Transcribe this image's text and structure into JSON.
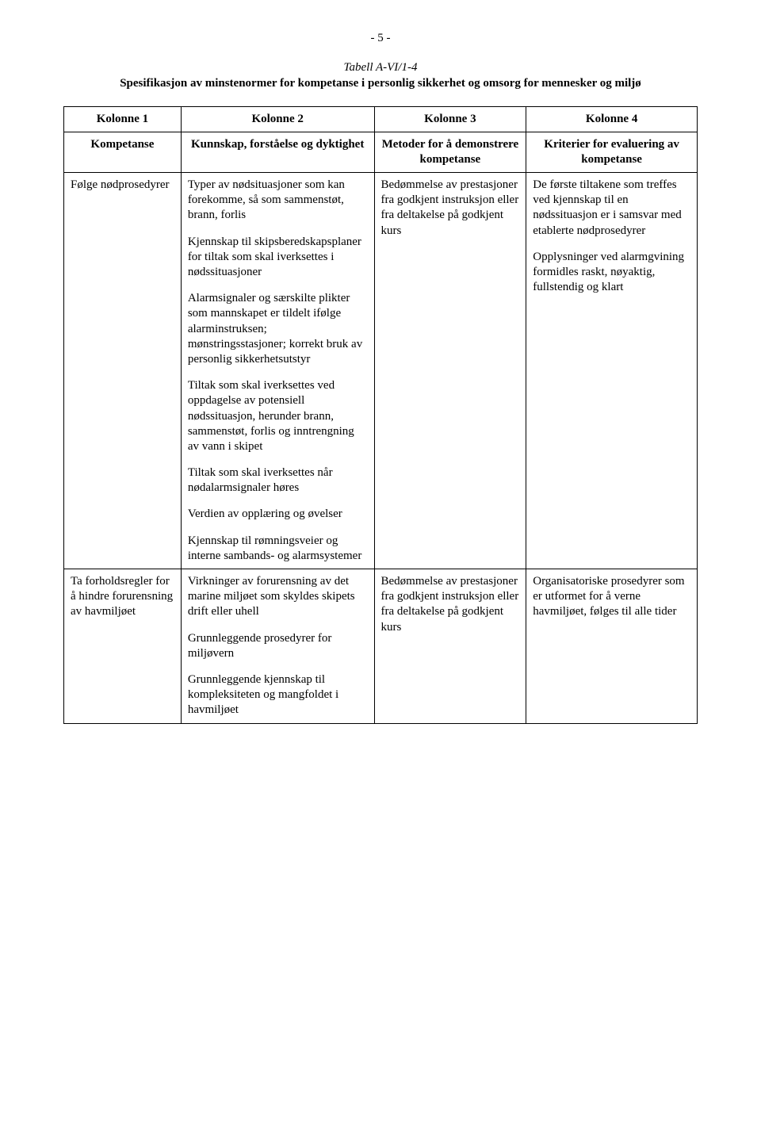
{
  "page_number": "- 5 -",
  "table_label": "Tabell A-VI/1-4",
  "spec_title": "Spesifikasjon av minstenormer for kompetanse i personlig sikkerhet og omsorg for mennesker og miljø",
  "col_headers_row1": [
    "Kolonne 1",
    "Kolonne 2",
    "Kolonne 3",
    "Kolonne 4"
  ],
  "col_headers_row2": [
    "Kompetanse",
    "Kunnskap, forståelse og dyktighet",
    "Metoder for å demonstrere kompetanse",
    "Kriterier for evaluering av kompetanse"
  ],
  "rows": [
    {
      "c1": [
        "Følge nødprosedyrer"
      ],
      "c2": [
        "Typer av nødsituasjoner som kan forekomme, så som sammenstøt, brann, forlis",
        "Kjennskap til skipsberedskapsplaner for tiltak som skal iverksettes i nødssituasjoner",
        "Alarmsignaler og særskilte plikter som mannskapet er tildelt ifølge alarminstruksen; mønstringsstasjoner; korrekt bruk av personlig sikkerhetsutstyr",
        "Tiltak som skal iverksettes ved oppdagelse av potensiell nødssituasjon, herunder brann, sammenstøt, forlis og inntrengning av vann i skipet",
        "Tiltak som skal iverksettes når nødalarmsignaler høres",
        "Verdien av opplæring og øvelser",
        "Kjennskap til rømningsveier og interne sambands- og alarmsystemer"
      ],
      "c3": [
        "Bedømmelse av prestasjoner fra godkjent instruksjon eller fra deltakelse på godkjent kurs"
      ],
      "c4": [
        "De første tiltakene som treffes ved kjennskap til en nødssituasjon er i samsvar med etablerte nødprosedyrer",
        "Opplysninger ved alarmgvining formidles raskt, nøyaktig, fullstendig og klart"
      ]
    },
    {
      "c1": [
        "Ta forholdsregler for å hindre forurensning av havmiljøet"
      ],
      "c2": [
        "Virkninger av forurensning av det marine miljøet som skyldes skipets drift eller uhell",
        "Grunnleggende prosedyrer for miljøvern",
        "Grunnleggende kjennskap til kompleksiteten og mangfoldet i havmiljøet"
      ],
      "c3": [
        "Bedømmelse av prestasjoner fra godkjent instruksjon eller fra deltakelse på godkjent kurs"
      ],
      "c4": [
        "Organisatoriske prosedyrer som er utformet for å verne havmiljøet, følges til alle tider"
      ]
    }
  ]
}
